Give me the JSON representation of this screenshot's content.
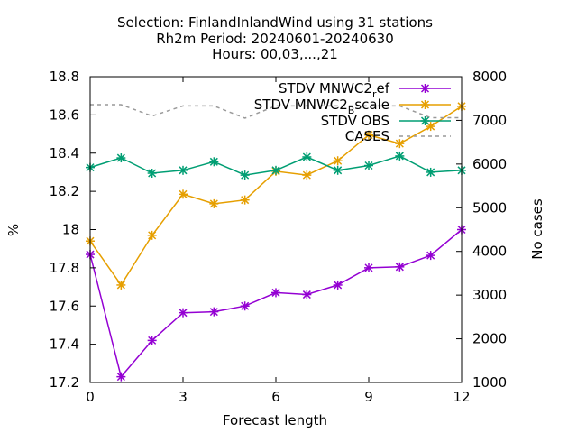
{
  "chart_data": {
    "type": "line",
    "title_lines": [
      "Selection: FinlandInlandWind using    31 stations",
      "Rh2m   Period: 20240601-20240630",
      "Hours: 00,03,...,21"
    ],
    "xlabel": "Forecast length",
    "ylabel": "%",
    "y2label": "No cases",
    "xlim": [
      0,
      12
    ],
    "ylim": [
      17.2,
      18.8
    ],
    "y2lim": [
      1000,
      8000
    ],
    "xticks": [
      "0",
      "3",
      "6",
      "9",
      "12"
    ],
    "yticks": [
      "17.2",
      "17.4",
      "17.6",
      "17.8",
      "18",
      "18.2",
      "18.4",
      "18.6",
      "18.8"
    ],
    "y2ticks": [
      "1000",
      "2000",
      "3000",
      "4000",
      "5000",
      "6000",
      "7000",
      "8000"
    ],
    "legend_position": "top-right",
    "x": [
      0,
      1,
      2,
      3,
      4,
      5,
      6,
      7,
      8,
      9,
      10,
      11,
      12
    ],
    "series": [
      {
        "name": "STDV MNWC2_ref",
        "legend_main": "STDV MNWC2",
        "legend_sub": "r",
        "legend_tail": "ef",
        "color": "#9400d3",
        "axis": "y",
        "style": "solid",
        "values": [
          17.87,
          17.23,
          17.42,
          17.565,
          17.57,
          17.6,
          17.67,
          17.66,
          17.71,
          17.8,
          17.805,
          17.865,
          18.0
        ]
      },
      {
        "name": "STDV MNWC2_Bscale",
        "legend_main": "STDV MNWC2",
        "legend_sub": "B",
        "legend_tail": "scale",
        "color": "#e69f00",
        "axis": "y",
        "style": "solid",
        "values": [
          17.94,
          17.71,
          17.97,
          18.185,
          18.135,
          18.155,
          18.305,
          18.285,
          18.36,
          18.495,
          18.45,
          18.54,
          18.645
        ]
      },
      {
        "name": "STDV OBS",
        "legend_main": "STDV OBS",
        "legend_sub": "",
        "legend_tail": "",
        "color": "#009e73",
        "axis": "y",
        "style": "solid",
        "values": [
          18.325,
          18.375,
          18.295,
          18.31,
          18.355,
          18.285,
          18.31,
          18.38,
          18.31,
          18.335,
          18.385,
          18.3,
          18.31
        ]
      },
      {
        "name": "CASES",
        "legend_main": "CASES",
        "legend_sub": "",
        "legend_tail": "",
        "color": "#999999",
        "axis": "y2",
        "style": "dashed",
        "values": [
          7360,
          7360,
          7100,
          7330,
          7330,
          7050,
          7330,
          7330,
          7330,
          7330,
          7330,
          7060,
          7060
        ]
      }
    ]
  }
}
